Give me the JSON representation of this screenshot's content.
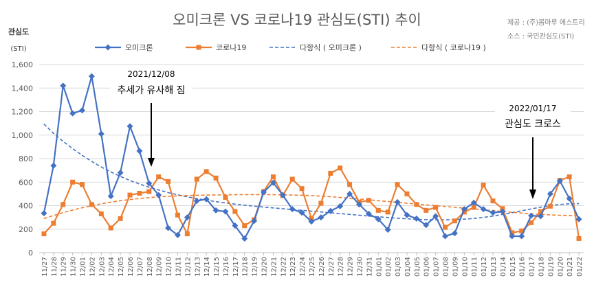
{
  "chart_data": {
    "type": "line",
    "title": "오미크론 VS 코로나19 관심도(STI) 추이",
    "source_lines": [
      "제공 : (주)봄마루 에스트리",
      "소스 : 국민관심도(STI)"
    ],
    "ylabel": "관심도",
    "yunit": "(STI)",
    "ylim": [
      0,
      1600
    ],
    "yticks": [
      "0",
      "200",
      "400",
      "600",
      "800",
      "1,000",
      "1,200",
      "1,400",
      "1,600"
    ],
    "grid": true,
    "legend_position": "top",
    "categories": [
      "11/27",
      "11/28",
      "11/29",
      "11/30",
      "12/01",
      "12/02",
      "12/03",
      "12/04",
      "12/05",
      "12/06",
      "12/07",
      "12/08",
      "12/09",
      "12/10",
      "12/11",
      "12/12",
      "12/13",
      "12/14",
      "12/15",
      "12/16",
      "12/17",
      "12/18",
      "12/19",
      "12/20",
      "12/21",
      "12/22",
      "12/23",
      "12/24",
      "12/25",
      "12/26",
      "12/27",
      "12/28",
      "12/29",
      "12/30",
      "12/31",
      "01/01",
      "01/02",
      "01/03",
      "01/04",
      "01/05",
      "01/06",
      "01/07",
      "01/08",
      "01/09",
      "01/10",
      "01/11",
      "01/12",
      "01/13",
      "01/14",
      "01/15",
      "01/16",
      "01/17",
      "01/18",
      "01/19",
      "01/20",
      "01/21",
      "01/22"
    ],
    "series": [
      {
        "name": "오미크론",
        "color": "#4472c4",
        "marker": "diamond",
        "values": [
          335,
          740,
          1420,
          1185,
          1210,
          1500,
          1010,
          480,
          680,
          1075,
          865,
          590,
          490,
          210,
          150,
          300,
          440,
          455,
          360,
          350,
          230,
          120,
          270,
          515,
          595,
          490,
          370,
          340,
          265,
          300,
          355,
          395,
          500,
          410,
          330,
          285,
          195,
          430,
          320,
          290,
          235,
          310,
          140,
          165,
          370,
          425,
          370,
          340,
          350,
          140,
          140,
          315,
          310,
          500,
          610,
          460,
          285
        ]
      },
      {
        "name": "코로나19",
        "color": "#ed7d31",
        "marker": "square",
        "values": [
          160,
          250,
          410,
          600,
          580,
          410,
          330,
          210,
          290,
          490,
          505,
          520,
          645,
          605,
          320,
          160,
          625,
          690,
          635,
          470,
          350,
          230,
          280,
          520,
          645,
          485,
          625,
          545,
          290,
          420,
          675,
          720,
          580,
          430,
          445,
          360,
          345,
          580,
          500,
          410,
          360,
          385,
          215,
          270,
          345,
          385,
          575,
          440,
          375,
          170,
          185,
          255,
          350,
          395,
          615,
          645,
          120
        ]
      },
      {
        "name": "다항식 ( 오미크론 )",
        "color": "#4472c4",
        "dashed": true,
        "values": [
          1095,
          1015,
          947,
          885,
          828,
          776,
          729,
          687,
          649,
          614,
          584,
          557,
          533,
          511,
          492,
          475,
          460,
          446,
          434,
          423,
          413,
          404,
          396,
          388,
          381,
          374,
          367,
          360,
          353,
          346,
          339,
          332,
          325,
          318,
          311,
          305,
          299,
          293,
          288,
          284,
          281,
          279,
          279,
          281,
          285,
          291,
          300,
          311,
          325,
          340,
          356,
          372,
          387,
          400,
          410,
          416,
          417
        ]
      },
      {
        "name": "다항식 ( 코로나19 )",
        "color": "#ed7d31",
        "dashed": true,
        "values": [
          290,
          316,
          340,
          362,
          382,
          400,
          416,
          430,
          442,
          452,
          461,
          468,
          474,
          479,
          483,
          486,
          488,
          490,
          491,
          492,
          493,
          494,
          494,
          494,
          493,
          492,
          490,
          488,
          485,
          481,
          476,
          470,
          463,
          456,
          449,
          442,
          435,
          428,
          421,
          414,
          407,
          400,
          393,
          386,
          379,
          372,
          365,
          358,
          351,
          344,
          337,
          331,
          326,
          321,
          318,
          316,
          315
        ]
      }
    ],
    "annotations": [
      {
        "date": "2021/12/08",
        "text": "추세가 유사해 짐",
        "x": "12/08"
      },
      {
        "date": "2022/01/17",
        "text": "관심도 크로스",
        "x": "01/17"
      }
    ]
  }
}
